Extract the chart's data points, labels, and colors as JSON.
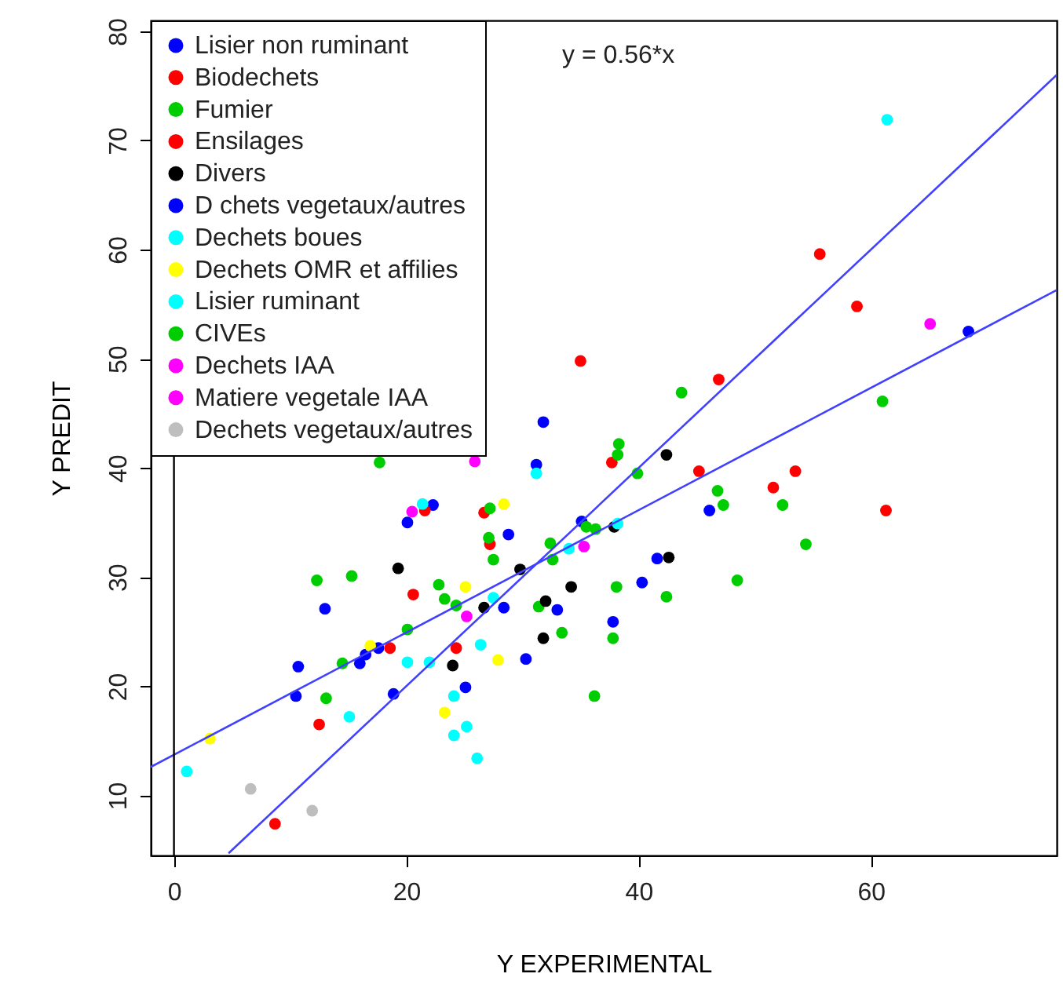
{
  "chart_data": {
    "type": "scatter",
    "xlabel": "Y EXPERIMENTAL",
    "ylabel": "Y PREDIT",
    "annotations": [
      "y = 0.56*x"
    ],
    "xlim": [
      -2,
      76
    ],
    "ylim": [
      4.5,
      81
    ],
    "xticks": [
      0,
      20,
      40,
      60
    ],
    "yticks": [
      10,
      20,
      30,
      40,
      50,
      60,
      70,
      80
    ],
    "grid": false,
    "legend": "top left",
    "marker": "circle",
    "ref_lines": [
      {
        "axis": "x",
        "value": 0,
        "color": "#000000"
      }
    ],
    "series": [
      {
        "name": "Lisier non ruminant",
        "color": "#0000ff",
        "x": [
          31.2,
          22.3,
          20.1,
          28.8,
          35.1,
          28.4,
          13.0,
          33.0,
          16.5,
          17.6,
          16.0
        ],
        "values": [
          40.3,
          36.6,
          35.0,
          33.9,
          35.1,
          27.2,
          27.1,
          27.0,
          22.9,
          23.5,
          22.1
        ]
      },
      {
        "name": "Biodechets",
        "color": "#ff0000",
        "x": [
          21.6,
          26.7,
          27.2,
          20.6,
          18.6,
          24.3,
          12.5,
          8.7,
          35.0
        ],
        "values": [
          36.1,
          35.9,
          33.0,
          28.4,
          23.5,
          23.5,
          16.5,
          7.4,
          49.8
        ]
      },
      {
        "name": "Fumier",
        "color": "#00cd00",
        "x": [
          17.7,
          27.2,
          27.1,
          27.5,
          32.4,
          32.6,
          35.5,
          12.3,
          15.3,
          22.8,
          23.3,
          24.3,
          20.1,
          31.4,
          33.4,
          14.5
        ],
        "values": [
          40.5,
          36.3,
          33.6,
          31.6,
          33.1,
          31.6,
          34.6,
          29.7,
          30.1,
          29.3,
          28.0,
          27.4,
          25.2,
          27.3,
          24.9,
          22.1
        ]
      },
      {
        "name": "Ensilages",
        "color": "#ff0000",
        "x": [
          55.6,
          58.8,
          46.9,
          37.7,
          45.2,
          53.5,
          51.6,
          61.3
        ],
        "values": [
          59.6,
          54.8,
          48.1,
          40.5,
          39.7,
          39.7,
          38.2,
          36.1
        ]
      },
      {
        "name": "Divers",
        "color": "#000000",
        "x": [
          29.8,
          19.3,
          26.7,
          32.0,
          34.2,
          31.8,
          24.0,
          42.4,
          37.9,
          42.6
        ],
        "values": [
          30.7,
          30.8,
          27.2,
          27.8,
          29.1,
          24.4,
          21.9,
          41.2,
          34.6,
          31.8
        ]
      },
      {
        "name": "D chets vegetaux/autres",
        "color": "#0000ff",
        "x": [
          10.7,
          30.3,
          10.5,
          18.9,
          25.1,
          31.8,
          68.4,
          46.1,
          41.6,
          40.3,
          37.8
        ],
        "values": [
          21.8,
          22.5,
          19.1,
          19.3,
          19.9,
          44.2,
          52.5,
          36.1,
          31.7,
          29.5,
          25.9
        ]
      },
      {
        "name": "Dechets boues",
        "color": "#00ffff",
        "x": [
          31.2,
          21.4,
          34.0,
          27.5,
          26.4,
          20.1,
          22.0,
          24.1
        ],
        "values": [
          39.5,
          36.7,
          32.6,
          28.1,
          23.8,
          22.2,
          22.2,
          19.1
        ]
      },
      {
        "name": "Dechets OMR et affilies",
        "color": "#ffff00",
        "x": [
          28.4,
          25.1,
          16.9,
          27.9,
          23.3,
          3.1
        ],
        "values": [
          36.7,
          29.1,
          23.7,
          22.4,
          17.6,
          15.2
        ]
      },
      {
        "name": "Lisier ruminant",
        "color": "#00ffff",
        "x": [
          15.1,
          25.2,
          24.1,
          26.1,
          1.1,
          61.4,
          38.2
        ],
        "values": [
          17.2,
          16.3,
          15.5,
          13.4,
          12.2,
          71.9,
          34.9
        ]
      },
      {
        "name": "CIVEs",
        "color": "#00cd00",
        "x": [
          13.1,
          36.2,
          61.0,
          43.7,
          38.3,
          38.2,
          39.9,
          46.8,
          47.3,
          52.4,
          54.4,
          36.3,
          38.1,
          42.4,
          48.5,
          37.8
        ],
        "values": [
          18.9,
          19.1,
          46.1,
          46.9,
          42.2,
          41.2,
          39.5,
          37.9,
          36.6,
          36.6,
          33.0,
          34.4,
          29.1,
          28.2,
          29.7,
          24.4
        ]
      },
      {
        "name": "Dechets IAA",
        "color": "#ff00ff",
        "x": [
          25.9,
          20.5,
          35.3
        ],
        "values": [
          40.6,
          36.0,
          32.8
        ]
      },
      {
        "name": "Matiere vegetale IAA",
        "color": "#ff00ff",
        "x": [
          25.2,
          65.1
        ],
        "values": [
          26.4,
          53.2
        ]
      },
      {
        "name": "Dechets vegetaux/autres",
        "color": "#bebebe",
        "x": [
          6.6,
          11.9
        ],
        "values": [
          10.6,
          8.6
        ]
      },
      {
        "type": "line",
        "color": "#4040ff",
        "marker": "none",
        "line_style": "solid",
        "x": [
          4.7,
          76
        ],
        "values": [
          4.7,
          76
        ]
      },
      {
        "type": "line",
        "color": "#4040ff",
        "marker": "none",
        "line_style": "solid",
        "x": [
          -2,
          76
        ],
        "values": [
          12.6,
          56.3
        ]
      }
    ]
  }
}
